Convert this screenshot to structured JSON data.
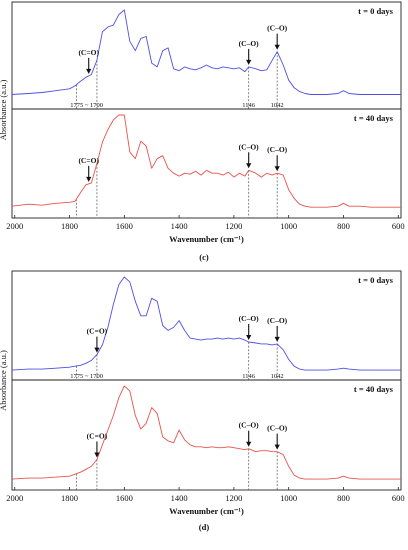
{
  "panels": [
    {
      "panel_label": "(c)",
      "xlabel": "Wavenumber (cm⁻¹)",
      "ylabel": "Absorbance (a.u.)",
      "xticks": [
        2000,
        1800,
        1600,
        1400,
        1200,
        1000,
        800,
        600
      ],
      "xlim": [
        2010,
        590
      ],
      "dashed_lines": [
        1775,
        1700,
        1146,
        1042
      ],
      "range_label": "1775 ~ 1700",
      "point_labels": [
        "1146",
        "1042"
      ],
      "top": {
        "condition": "t = 0 days",
        "color": "#4f4fe6",
        "arrows": [
          {
            "label": "(C=O)",
            "x": 1730
          },
          {
            "label": "(C–O)",
            "x": 1146
          },
          {
            "label": "(C–O)",
            "x": 1042
          }
        ]
      },
      "bottom": {
        "condition": "t = 40 days",
        "color": "#e8544c",
        "arrows": [
          {
            "label": "(C=O)",
            "x": 1730
          },
          {
            "label": "(C–O)",
            "x": 1146
          },
          {
            "label": "(C–O)",
            "x": 1042
          }
        ]
      }
    },
    {
      "panel_label": "(d)",
      "xlabel": "Wavenumber (cm⁻¹)",
      "ylabel": "Absorbance (a.u.)",
      "xticks": [
        2000,
        1800,
        1600,
        1400,
        1200,
        1000,
        800,
        600
      ],
      "xlim": [
        2010,
        590
      ],
      "dashed_lines": [
        1775,
        1700,
        1146,
        1042
      ],
      "range_label": "1775 ~ 1700",
      "point_labels": [
        "1146",
        "1042"
      ],
      "top": {
        "condition": "t = 0 days",
        "color": "#4f4fe6",
        "arrows": [
          {
            "label": "(C=O)",
            "x": 1700
          },
          {
            "label": "(C–O)",
            "x": 1146
          },
          {
            "label": "(C–O)",
            "x": 1042
          }
        ]
      },
      "bottom": {
        "condition": "t = 40 days",
        "color": "#e8544c",
        "arrows": [
          {
            "label": "(C=O)",
            "x": 1700
          },
          {
            "label": "(C–O)",
            "x": 1146
          },
          {
            "label": "(C–O)",
            "x": 1042
          }
        ]
      }
    }
  ],
  "chart_data": [
    {
      "type": "line",
      "title": "",
      "xlabel": "Wavenumber (cm⁻¹)",
      "ylabel": "Absorbance (a.u.)",
      "xlim": [
        2010,
        590
      ],
      "ylim": [
        0,
        1
      ],
      "series": [
        {
          "name": "t = 0 days",
          "x": [
            2010,
            1950,
            1900,
            1850,
            1800,
            1780,
            1760,
            1740,
            1720,
            1700,
            1680,
            1660,
            1640,
            1620,
            1600,
            1580,
            1560,
            1540,
            1520,
            1500,
            1480,
            1460,
            1440,
            1420,
            1400,
            1380,
            1360,
            1340,
            1320,
            1300,
            1280,
            1260,
            1240,
            1220,
            1200,
            1180,
            1160,
            1146,
            1120,
            1100,
            1080,
            1060,
            1042,
            1020,
            1000,
            980,
            960,
            940,
            920,
            900,
            860,
            820,
            800,
            780,
            740,
            700,
            650,
            600,
            590
          ],
          "y": [
            0.09,
            0.1,
            0.11,
            0.13,
            0.15,
            0.18,
            0.23,
            0.27,
            0.3,
            0.45,
            0.75,
            0.8,
            0.82,
            0.93,
            0.98,
            0.65,
            0.55,
            0.68,
            0.7,
            0.42,
            0.38,
            0.55,
            0.58,
            0.36,
            0.34,
            0.38,
            0.36,
            0.35,
            0.37,
            0.4,
            0.37,
            0.36,
            0.38,
            0.37,
            0.36,
            0.37,
            0.33,
            0.38,
            0.36,
            0.34,
            0.35,
            0.45,
            0.54,
            0.4,
            0.24,
            0.16,
            0.12,
            0.1,
            0.09,
            0.09,
            0.09,
            0.1,
            0.13,
            0.1,
            0.09,
            0.09,
            0.09,
            0.09,
            0.09
          ]
        },
        {
          "name": "t = 40 days",
          "x": [
            2010,
            1950,
            1900,
            1850,
            1800,
            1780,
            1760,
            1740,
            1720,
            1700,
            1680,
            1660,
            1640,
            1620,
            1600,
            1580,
            1560,
            1540,
            1520,
            1500,
            1480,
            1460,
            1440,
            1420,
            1400,
            1380,
            1360,
            1340,
            1320,
            1300,
            1280,
            1260,
            1240,
            1220,
            1200,
            1180,
            1160,
            1146,
            1120,
            1100,
            1080,
            1060,
            1042,
            1020,
            1000,
            980,
            960,
            940,
            920,
            900,
            860,
            820,
            800,
            780,
            740,
            700,
            650,
            600,
            590
          ],
          "y": [
            0.06,
            0.08,
            0.07,
            0.09,
            0.1,
            0.11,
            0.2,
            0.28,
            0.3,
            0.5,
            0.72,
            0.85,
            0.95,
            1.0,
            1.0,
            0.62,
            0.55,
            0.73,
            0.68,
            0.45,
            0.55,
            0.58,
            0.45,
            0.4,
            0.37,
            0.4,
            0.39,
            0.42,
            0.38,
            0.43,
            0.4,
            0.4,
            0.38,
            0.41,
            0.36,
            0.4,
            0.37,
            0.43,
            0.4,
            0.36,
            0.4,
            0.38,
            0.4,
            0.38,
            0.23,
            0.14,
            0.08,
            0.06,
            0.05,
            0.05,
            0.05,
            0.06,
            0.09,
            0.06,
            0.06,
            0.05,
            0.05,
            0.05,
            0.05
          ]
        }
      ]
    },
    {
      "type": "line",
      "title": "",
      "xlabel": "Wavenumber (cm⁻¹)",
      "ylabel": "Absorbance (a.u.)",
      "xlim": [
        2010,
        590
      ],
      "ylim": [
        0,
        1
      ],
      "series": [
        {
          "name": "t = 0 days",
          "x": [
            2010,
            1950,
            1900,
            1850,
            1800,
            1780,
            1760,
            1740,
            1720,
            1700,
            1680,
            1660,
            1640,
            1620,
            1600,
            1580,
            1560,
            1540,
            1520,
            1500,
            1480,
            1460,
            1440,
            1420,
            1400,
            1380,
            1360,
            1340,
            1320,
            1300,
            1280,
            1260,
            1240,
            1220,
            1200,
            1180,
            1160,
            1146,
            1120,
            1100,
            1080,
            1060,
            1042,
            1020,
            1000,
            980,
            960,
            940,
            920,
            900,
            860,
            820,
            800,
            780,
            740,
            700,
            650,
            600,
            590
          ],
          "y": [
            0.04,
            0.05,
            0.05,
            0.06,
            0.07,
            0.08,
            0.09,
            0.11,
            0.14,
            0.2,
            0.3,
            0.48,
            0.72,
            0.92,
            1.0,
            0.95,
            0.75,
            0.6,
            0.6,
            0.78,
            0.75,
            0.5,
            0.45,
            0.48,
            0.55,
            0.45,
            0.37,
            0.36,
            0.35,
            0.36,
            0.36,
            0.37,
            0.36,
            0.37,
            0.36,
            0.37,
            0.35,
            0.33,
            0.32,
            0.31,
            0.31,
            0.3,
            0.31,
            0.25,
            0.15,
            0.08,
            0.05,
            0.04,
            0.04,
            0.04,
            0.04,
            0.05,
            0.06,
            0.05,
            0.04,
            0.04,
            0.04,
            0.04,
            0.04
          ]
        },
        {
          "name": "t = 40 days",
          "x": [
            2010,
            1950,
            1900,
            1850,
            1800,
            1780,
            1760,
            1740,
            1720,
            1700,
            1680,
            1660,
            1640,
            1620,
            1600,
            1580,
            1560,
            1540,
            1520,
            1500,
            1480,
            1460,
            1440,
            1420,
            1400,
            1380,
            1360,
            1340,
            1320,
            1300,
            1280,
            1260,
            1240,
            1220,
            1200,
            1180,
            1160,
            1146,
            1120,
            1100,
            1080,
            1060,
            1042,
            1020,
            1000,
            980,
            960,
            940,
            920,
            900,
            860,
            820,
            800,
            780,
            740,
            700,
            650,
            600,
            590
          ],
          "y": [
            0.05,
            0.06,
            0.06,
            0.07,
            0.08,
            0.1,
            0.12,
            0.15,
            0.18,
            0.25,
            0.4,
            0.55,
            0.7,
            0.88,
            1.0,
            0.95,
            0.7,
            0.56,
            0.62,
            0.78,
            0.72,
            0.48,
            0.44,
            0.42,
            0.55,
            0.45,
            0.4,
            0.38,
            0.38,
            0.37,
            0.38,
            0.37,
            0.37,
            0.38,
            0.37,
            0.36,
            0.35,
            0.36,
            0.33,
            0.34,
            0.34,
            0.33,
            0.33,
            0.3,
            0.18,
            0.09,
            0.06,
            0.05,
            0.05,
            0.05,
            0.05,
            0.06,
            0.08,
            0.06,
            0.05,
            0.05,
            0.05,
            0.05,
            0.05
          ]
        }
      ]
    }
  ]
}
